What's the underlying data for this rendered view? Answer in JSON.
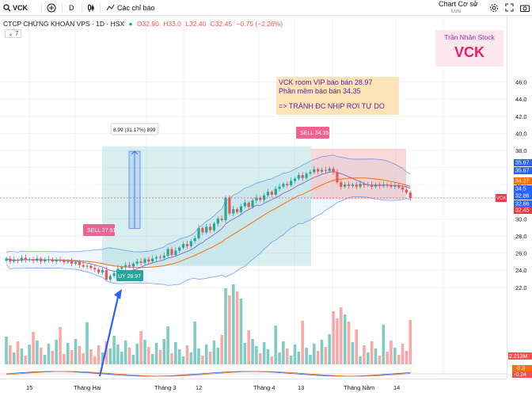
{
  "toolbar": {
    "symbol": "VCK",
    "interval": "D",
    "indicators_label": "Các chỉ báo",
    "layout_name": "Chart Cơ sở",
    "layout_sub": "Lưu"
  },
  "legend": {
    "title": "CTCP CHỨNG KHOÁN VPS · 1D · HSX",
    "open": "O32.90",
    "high": "H33.0",
    "low": "L32.40",
    "close": "C32.45",
    "change": "−0.75 (−2.26%)",
    "collapse_count": "7"
  },
  "brand": {
    "name": "Trần Nhân Stock",
    "ticker": "VCK"
  },
  "note": {
    "line1": "VCK room VIP báo bán 28.97",
    "line2": "Phần mềm báo bán 34.35",
    "line3": "=> TRÁNH ĐC NHỊP RƠI TỰ DO"
  },
  "annotations": {
    "sell1": "SELL 27.91",
    "buy1": "UY 28.97",
    "sell2": "SELL 34.35",
    "measure": "8.99 (31.17%) 899"
  },
  "price_axis": {
    "ticks": [
      "46.0",
      "44.0",
      "42.0",
      "40.0",
      "38.0",
      "34.0",
      "32.0",
      "30.0",
      "28.0",
      "26.0",
      "24.0",
      "22.0"
    ],
    "labels": [
      {
        "text": "35.67",
        "color": "#2962ff"
      },
      {
        "text": "35.67",
        "color": "#2962ff"
      },
      {
        "text": "34.27",
        "color": "#ff6d00"
      },
      {
        "text": "34.5",
        "color": "#2962ff"
      },
      {
        "text": "32.86",
        "color": "#2962ff"
      },
      {
        "text": "32.86",
        "color": "#2962ff"
      },
      {
        "text": "32.45",
        "color": "#f23645"
      }
    ],
    "current_symbol": "VCK",
    "volume_label": "2.213M",
    "macd_labels": [
      "-0.3",
      "-0.24"
    ]
  },
  "time_axis": [
    "15",
    "Tháng Hai",
    "Tháng 3",
    "12",
    "Tháng 4",
    "13",
    "Tháng Năm",
    "14"
  ],
  "colors": {
    "up": "#26a69a",
    "down": "#ef5350",
    "basis": "#ff6d00",
    "band": "#2962ff"
  }
}
